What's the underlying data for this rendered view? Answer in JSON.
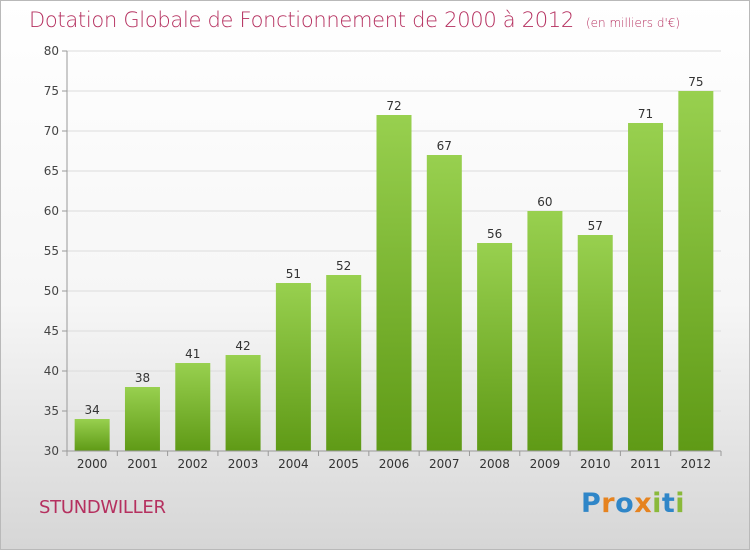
{
  "title": "Dotation Globale de Fonctionnement de 2000 à 2012",
  "unit_note": "(en milliers d'€)",
  "commune": "STUNDWILLER",
  "logo": {
    "text": "Proxiti",
    "letters": [
      "P",
      "r",
      "o",
      "x",
      "i",
      "t",
      "i"
    ]
  },
  "colors": {
    "title": "#b5305f",
    "bar_top": "#98d04f",
    "bar_bottom": "#5f9a16",
    "grid": "#dcdcdc",
    "axis": "#999999"
  },
  "chart_data": {
    "type": "bar",
    "categories": [
      "2000",
      "2001",
      "2002",
      "2003",
      "2004",
      "2005",
      "2006",
      "2007",
      "2008",
      "2009",
      "2010",
      "2011",
      "2012"
    ],
    "values": [
      34,
      38,
      41,
      42,
      51,
      52,
      72,
      67,
      56,
      60,
      57,
      71,
      75
    ],
    "ylim": [
      30,
      80
    ],
    "yticks": [
      30,
      35,
      40,
      45,
      50,
      55,
      60,
      65,
      70,
      75,
      80
    ],
    "grid": true,
    "data_labels": true
  }
}
